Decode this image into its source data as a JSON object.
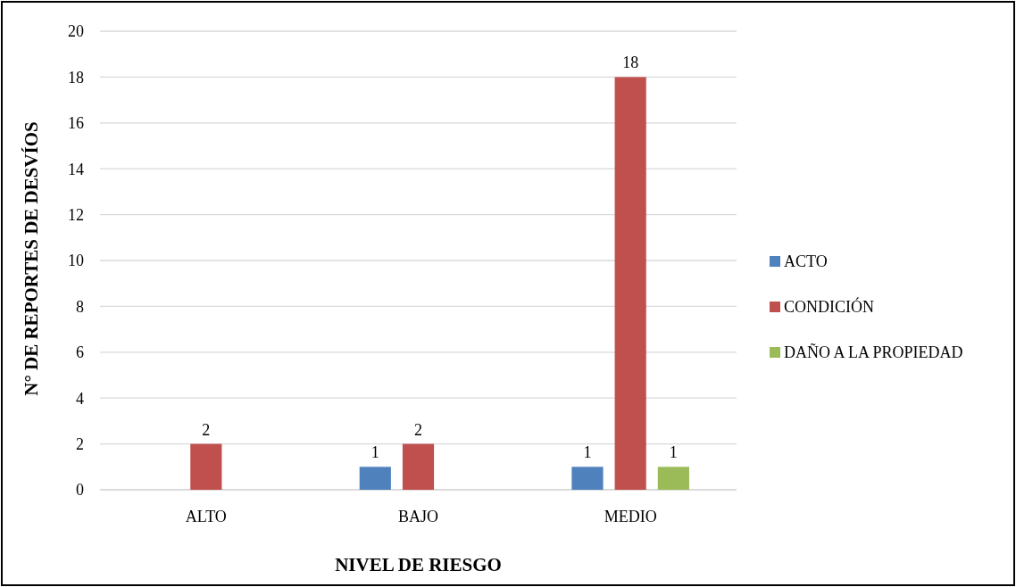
{
  "chart_data": {
    "type": "bar",
    "xlabel": "NIVEL DE RIESGO",
    "ylabel": "N° DE REPORTES DE DESVÍOS",
    "categories": [
      "ALTO",
      "BAJO",
      "MEDIO"
    ],
    "series": [
      {
        "name": "ACTO",
        "color": "#4f81bd",
        "values": [
          null,
          1,
          1
        ]
      },
      {
        "name": "CONDICIÓN",
        "color": "#c0504d",
        "values": [
          2,
          2,
          18
        ]
      },
      {
        "name": "DAÑO A LA PROPIEDAD",
        "color": "#9bbb59",
        "values": [
          null,
          null,
          1
        ]
      }
    ],
    "ylim": [
      0,
      20
    ],
    "yticks": [
      0,
      2,
      4,
      6,
      8,
      10,
      12,
      14,
      16,
      18,
      20
    ],
    "grid": "y",
    "legend": "right",
    "data_labels": true
  }
}
